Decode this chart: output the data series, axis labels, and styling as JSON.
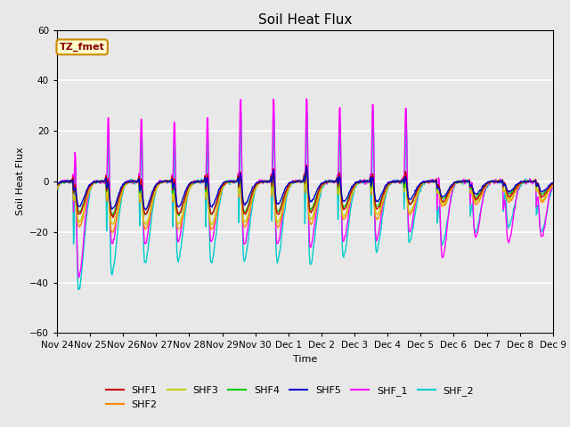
{
  "title": "Soil Heat Flux",
  "xlabel": "Time",
  "ylabel": "Soil Heat Flux",
  "ylim": [
    -60,
    60
  ],
  "yticks": [
    -60,
    -40,
    -20,
    0,
    20,
    40,
    60
  ],
  "series_colors": {
    "SHF1": "#cc0000",
    "SHF2": "#ff8800",
    "SHF3": "#cccc00",
    "SHF4": "#00cc00",
    "SHF5": "#0000cc",
    "SHF_1": "#ff00ff",
    "SHF_2": "#00cccc"
  },
  "xtick_labels": [
    "Nov 24",
    "Nov 25",
    "Nov 26",
    "Nov 27",
    "Nov 28",
    "Nov 29",
    "Nov 30",
    "Dec 1",
    "Dec 2",
    "Dec 3",
    "Dec 4",
    "Dec 5",
    "Dec 6",
    "Dec 7",
    "Dec 8",
    "Dec 9"
  ],
  "annotation_text": "TZ_fmet",
  "annotation_bg": "#ffffcc",
  "annotation_border": "#cc8800",
  "background_color": "#e8e8e8",
  "plot_bg": "#e8e8e8",
  "grid_color": "#ffffff",
  "title_fontsize": 11
}
